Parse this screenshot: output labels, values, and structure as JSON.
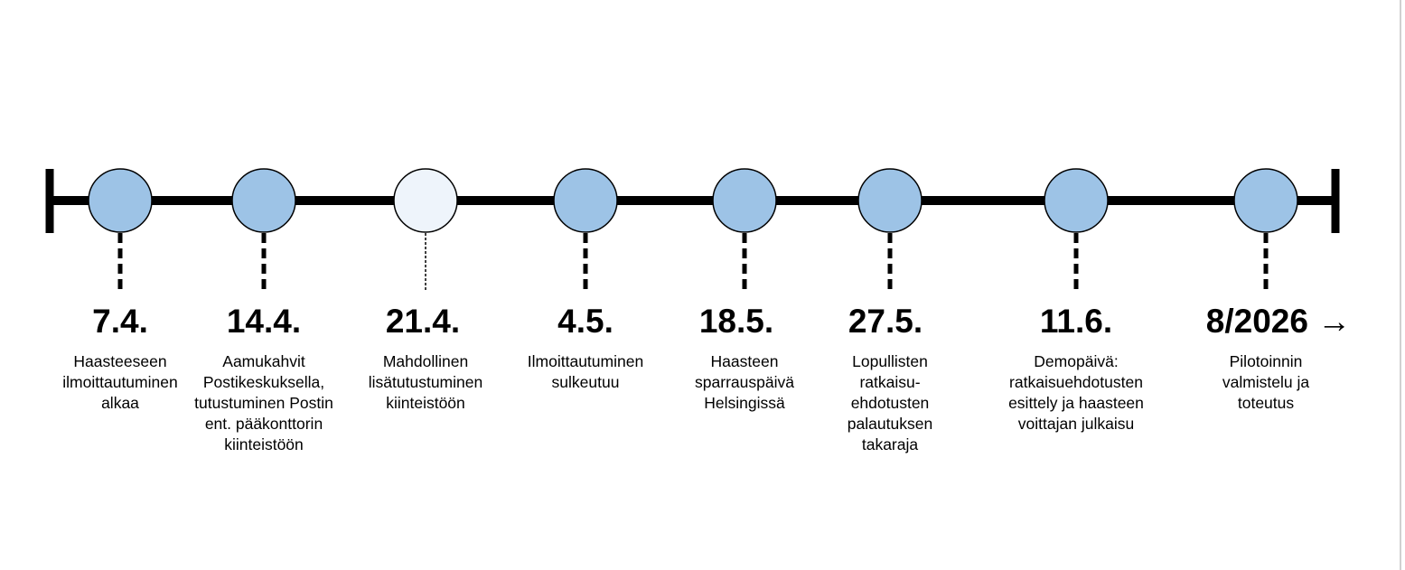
{
  "nodes": [
    {
      "date": "7.4.",
      "lines": [
        "Haasteeseen",
        "ilmoittautuminen",
        "alkaa"
      ],
      "color": "#9dc3e6"
    },
    {
      "date": "14.4.",
      "lines": [
        "Aamukahvit",
        "Postikeskuksella,",
        "tutustuminen Postin",
        "ent. pääkonttorin",
        "kiinteistöön"
      ],
      "color": "#9dc3e6"
    },
    {
      "date": "21.4.",
      "lines": [
        "Mahdollinen",
        "lisätutustuminen",
        "kiinteistöön"
      ],
      "color": "#eef4fb"
    },
    {
      "date": "4.5.",
      "lines": [
        "Ilmoittautuminen",
        "sulkeutuu"
      ],
      "color": "#9dc3e6"
    },
    {
      "date": "18.5.",
      "lines": [
        "Haasteen",
        "sparrauspäivä",
        "Helsingissä"
      ],
      "color": "#9dc3e6"
    },
    {
      "date": "27.5.",
      "lines": [
        "Lopullisten",
        "ratkaisu-",
        "ehdotusten",
        "palautuksen",
        "takaraja"
      ],
      "color": "#9dc3e6"
    },
    {
      "date": "11.6.",
      "lines": [
        "Demopäivä:",
        "ratkaisuehdotusten",
        "esittely ja haasteen",
        "voittajan julkaisu"
      ],
      "color": "#9dc3e6"
    },
    {
      "date": "8/2026 →",
      "lines": [
        "Pilotoinnin",
        "valmistelu ja",
        "toteutus"
      ],
      "color": "#9dc3e6"
    }
  ]
}
